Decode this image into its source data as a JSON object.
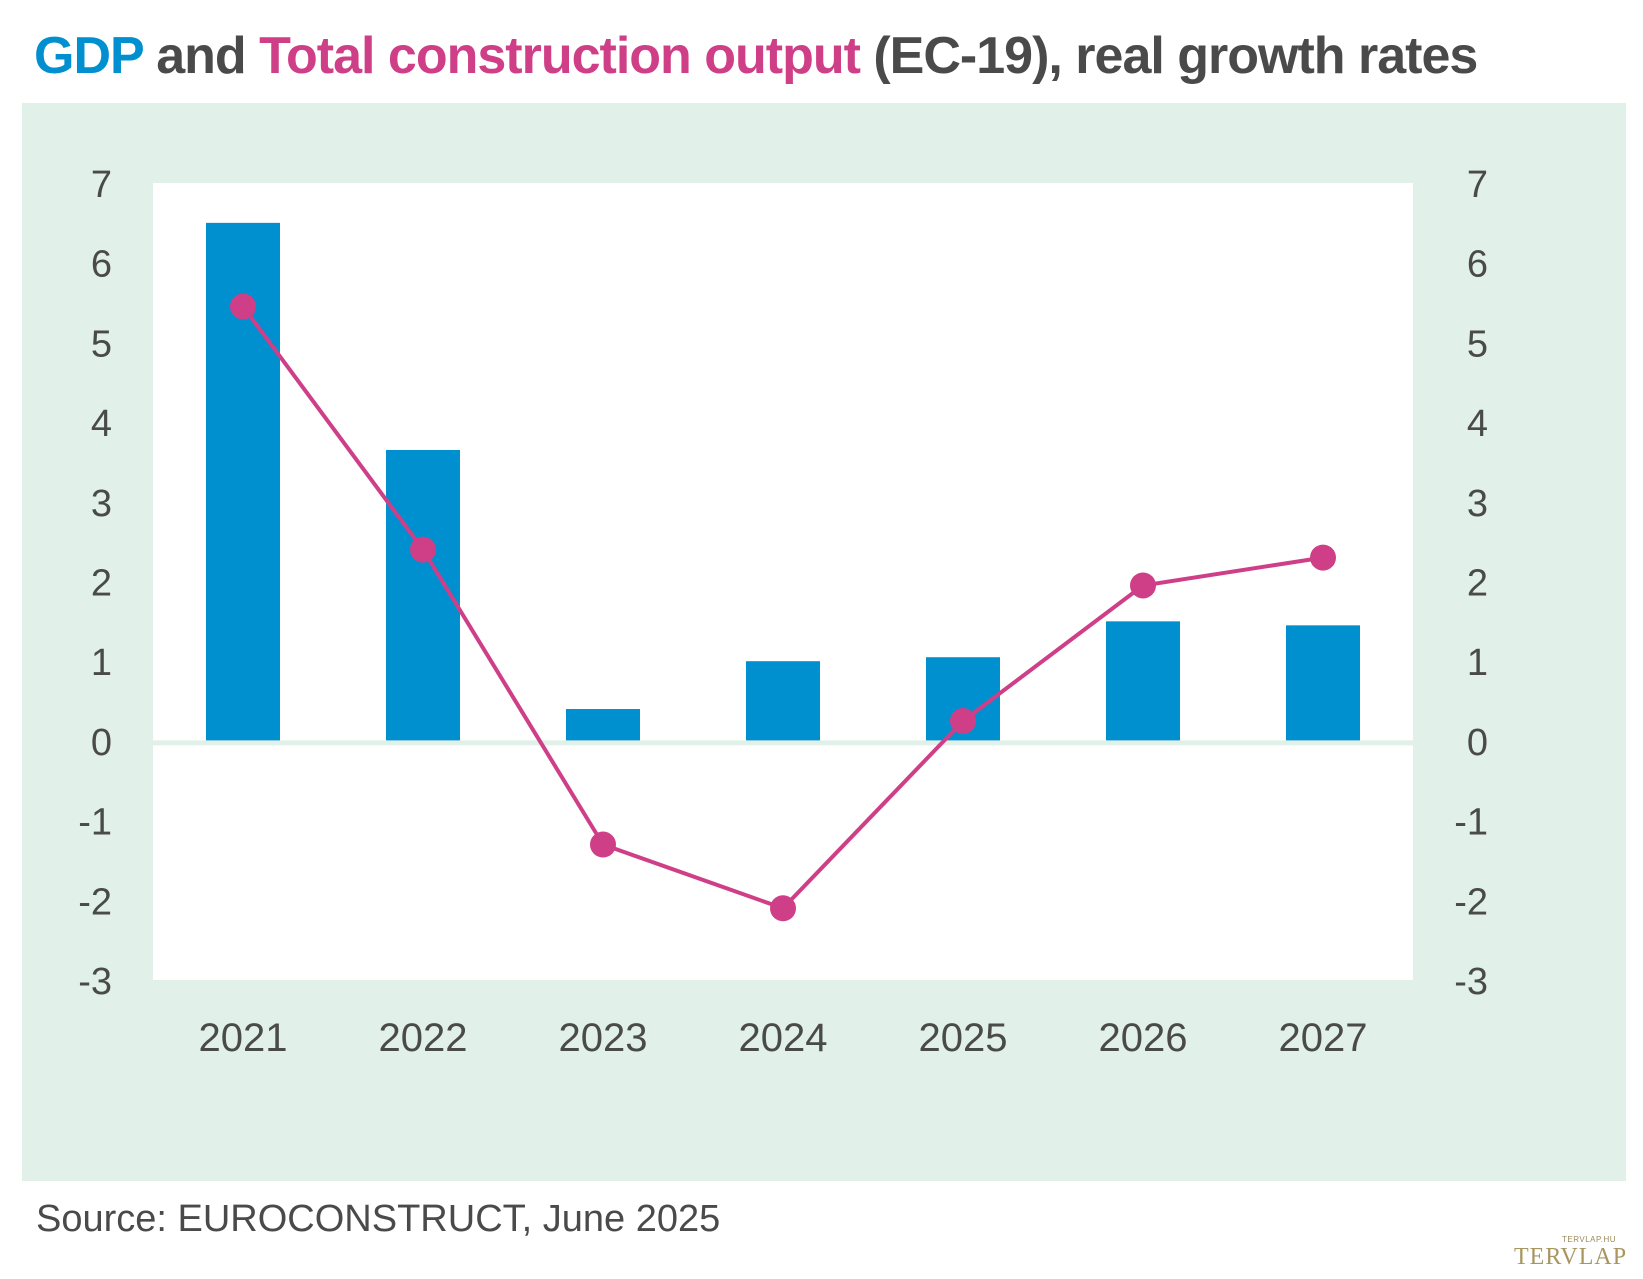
{
  "title": {
    "part_gdp": "GDP",
    "part_and": " and ",
    "part_construction": "Total construction output",
    "part_rest": " (EC-19), real growth rates"
  },
  "source": "Source: EUROCONSTRUCT, June 2025",
  "logo": {
    "small": "TERVLAP.HU",
    "big": "TERVLAP"
  },
  "colors": {
    "gdp": "#0090cf",
    "construction": "#cf3f87",
    "panel": "#e1f0e8"
  },
  "chart_data": {
    "type": "bar",
    "categories": [
      "2021",
      "2022",
      "2023",
      "2024",
      "2025",
      "2026",
      "2027"
    ],
    "series": [
      {
        "name": "GDP",
        "type": "bar",
        "values": [
          6.5,
          3.65,
          0.4,
          1.0,
          1.05,
          1.5,
          1.45
        ]
      },
      {
        "name": "Total construction output",
        "type": "line",
        "values": [
          5.45,
          2.4,
          -1.3,
          -2.1,
          0.25,
          1.95,
          2.3
        ]
      }
    ],
    "ylim": [
      -3,
      7
    ],
    "yticks": [
      "-3",
      "-2",
      "-1",
      "0",
      "1",
      "2",
      "3",
      "4",
      "5",
      "6",
      "7"
    ],
    "secondary_ylim": [
      -3,
      7
    ],
    "grid": false
  }
}
